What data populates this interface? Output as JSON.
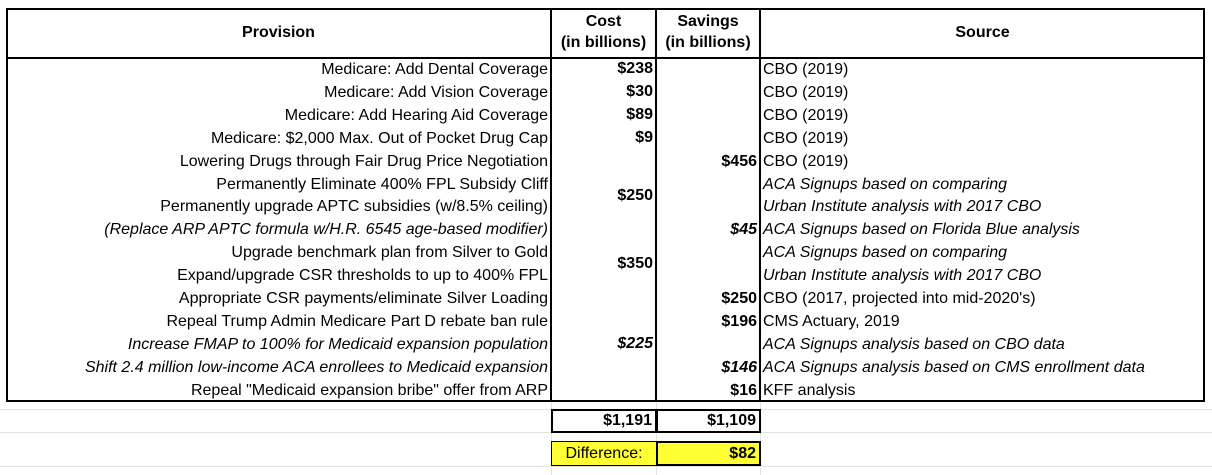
{
  "header": {
    "provision": "Provision",
    "cost": [
      "Cost",
      "(in billions)"
    ],
    "savings": [
      "Savings",
      "(in billions)"
    ],
    "source": "Source"
  },
  "rows": [
    {
      "provision": "Medicare: Add Dental Coverage",
      "cost": "$238",
      "source": "CBO (2019)"
    },
    {
      "provision": "Medicare: Add Vision Coverage",
      "cost": "$30",
      "source": "CBO (2019)"
    },
    {
      "provision": "Medicare: Add Hearing Aid Coverage",
      "cost": "$89",
      "source": "CBO (2019)"
    },
    {
      "provision": "Medicare: $2,000 Max. Out of Pocket Drug Cap",
      "cost": "$9",
      "source": "CBO (2019)"
    },
    {
      "provision": "Lowering Drugs through Fair Drug Price Negotiation",
      "savings": "$456",
      "source": "CBO (2019)"
    },
    {
      "provision": "Permanently Eliminate 400% FPL Subsidy Cliff",
      "cost": "$250",
      "source": "ACA Signups based on comparing"
    },
    {
      "provision": "Permanently upgrade APTC subsidies (w/8.5% ceiling)",
      "source": "Urban Institute analysis with 2017 CBO"
    },
    {
      "provision": "(Replace ARP APTC formula w/H.R. 6545 age-based modifier)",
      "savings": "$45",
      "source": "ACA Signups based on Florida Blue analysis"
    },
    {
      "provision": "Upgrade benchmark plan from Silver to Gold",
      "cost": "$350",
      "source": "ACA Signups based on comparing"
    },
    {
      "provision": "Expand/upgrade CSR thresholds to up to 400% FPL",
      "source": "Urban Institute analysis with 2017 CBO"
    },
    {
      "provision": "Appropriate CSR payments/eliminate Silver Loading",
      "savings": "$250",
      "source": "CBO (2017, projected into mid-2020's)"
    },
    {
      "provision": "Repeal Trump Admin Medicare Part D rebate ban rule",
      "savings": "$196",
      "source": "CMS Actuary, 2019"
    },
    {
      "provision": "Increase FMAP to 100% for  Medicaid expansion population",
      "cost": "$225",
      "source": "ACA Signups analysis based on CBO data"
    },
    {
      "provision": "Shift 2.4 million low-income ACA enrollees to Medicaid expansion",
      "savings": "$146",
      "source": "ACA Signups analysis based on CMS enrollment data"
    },
    {
      "provision": "Repeal \"Medicaid expansion bribe\" offer from ARP",
      "savings": "$16",
      "source": "KFF analysis"
    }
  ],
  "totals": {
    "cost": "$1,191",
    "savings": "$1,109"
  },
  "difference": {
    "label": "Difference:",
    "value": "$82"
  }
}
